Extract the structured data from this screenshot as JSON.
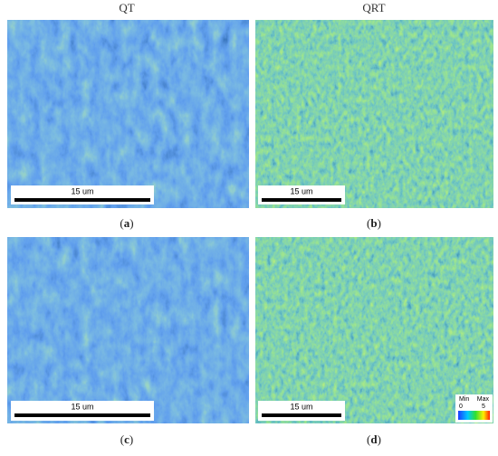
{
  "headers": [
    "QT",
    "QRT"
  ],
  "panels": [
    {
      "caption_open": "(",
      "letter": "a",
      "caption_close": ")",
      "scale_bar": "15 um"
    },
    {
      "caption_open": "(",
      "letter": "b",
      "caption_close": ")",
      "scale_bar": "15 um"
    },
    {
      "caption_open": "(",
      "letter": "c",
      "caption_close": ")",
      "scale_bar": "15 um"
    },
    {
      "caption_open": "(",
      "letter": "d",
      "caption_close": ")",
      "scale_bar": "15 um"
    }
  ],
  "colorbar": {
    "min_label": "Min",
    "max_label": "Max",
    "min_value": "0",
    "max_value": "5"
  }
}
